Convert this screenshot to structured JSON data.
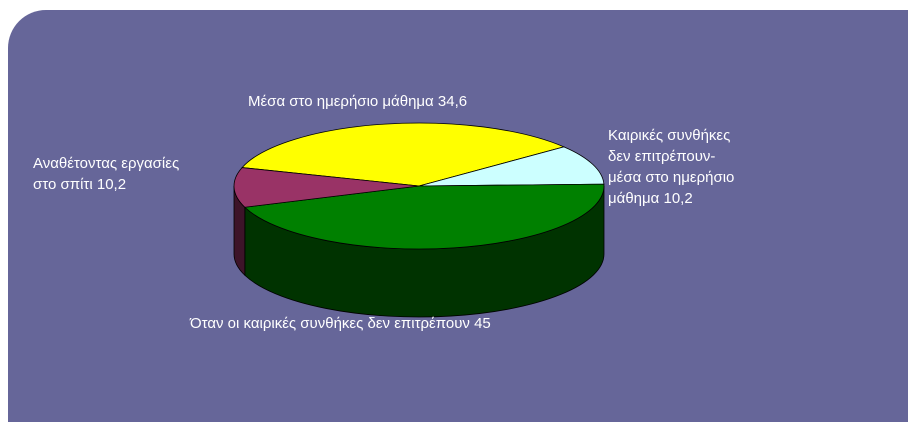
{
  "chart_data": {
    "type": "pie",
    "style": "3d",
    "slices": [
      {
        "label_lines": [
          "Μέσα στο ημερήσιο μάθημα  34,6"
        ],
        "value": 34.6,
        "color": "#ffff00"
      },
      {
        "label_lines": [
          "Καιρικές συνθήκες",
          "δεν επιτρέπουν-",
          "μέσα στο ημερήσιο",
          "μάθημα 10,2"
        ],
        "value": 10.2,
        "color": "#ccffff"
      },
      {
        "label_lines": [
          "Όταν οι καιρικές συνθήκες δεν επιτρέπουν 45"
        ],
        "value": 45,
        "color": "#008000"
      },
      {
        "label_lines": [
          "Αναθέτοντας εργασίες",
          "στο σπίτι 10,2"
        ],
        "value": 10.2,
        "color": "#993366"
      }
    ],
    "background_color": "#666699"
  }
}
